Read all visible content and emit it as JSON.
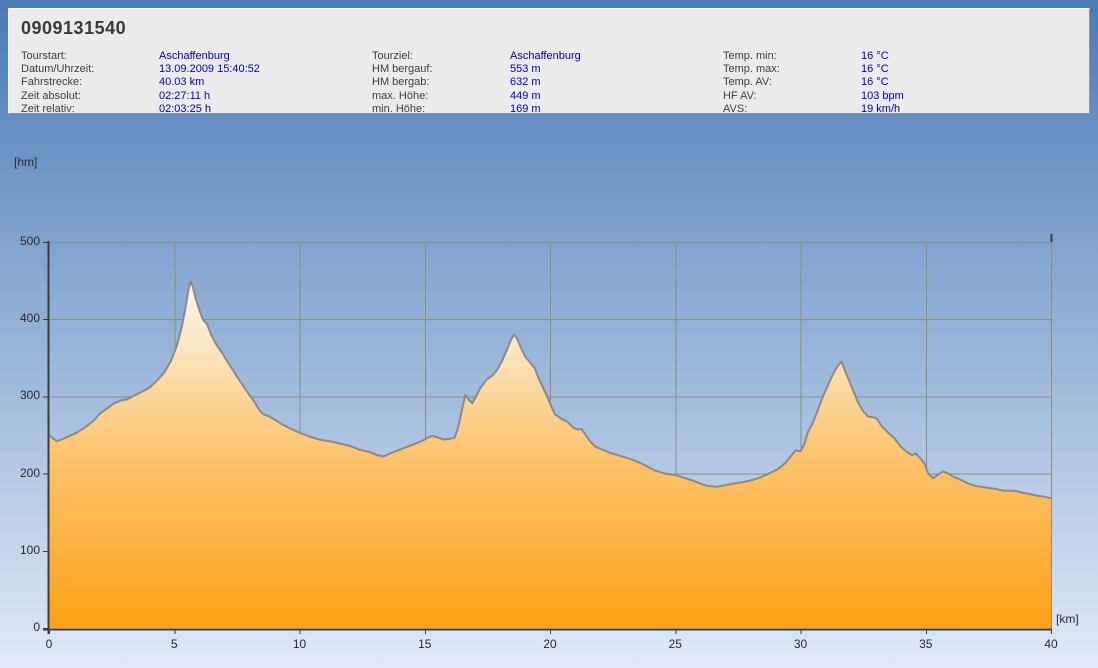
{
  "header": {
    "title": "0909131540",
    "columns": [
      {
        "rows": [
          {
            "label": "Tourstart:",
            "value": "Aschaffenburg"
          },
          {
            "label": "Datum/Uhrzeit:",
            "value": "13.09.2009 15:40:52"
          },
          {
            "label": "Fahrstrecke:",
            "value": "40.03 km"
          },
          {
            "label": "Zeit absolut:",
            "value": "02:27:11 h"
          },
          {
            "label": "Zeit relativ:",
            "value": "02:03:25 h"
          }
        ]
      },
      {
        "rows": [
          {
            "label": "Tourziel:",
            "value": "Aschaffenburg"
          },
          {
            "label": "HM bergauf:",
            "value": "553 m"
          },
          {
            "label": "HM bergab:",
            "value": "632 m"
          },
          {
            "label": "max. Höhe:",
            "value": "449 m"
          },
          {
            "label": "min. Höhe:",
            "value": "169 m"
          }
        ]
      },
      {
        "rows": [
          {
            "label": "Temp. min:",
            "value": "16 °C"
          },
          {
            "label": "Temp. max:",
            "value": "16 °C"
          },
          {
            "label": "Temp. AV:",
            "value": "16 °C"
          },
          {
            "label": "HF AV:",
            "value": "103 bpm"
          },
          {
            "label": "AVS:",
            "value": "19 km/h"
          }
        ]
      }
    ]
  },
  "chart_data": {
    "type": "area",
    "title": "",
    "xlabel": "[km]",
    "ylabel": "[hm]",
    "xlim": [
      0,
      40
    ],
    "ylim": [
      0,
      500
    ],
    "x_ticks": [
      0,
      5,
      10,
      15,
      20,
      25,
      30,
      35,
      40
    ],
    "y_ticks": [
      0,
      100,
      200,
      300,
      400,
      500
    ],
    "grid": true,
    "legend": "none",
    "series": [
      {
        "name": "elevation_profile_hm",
        "points": [
          [
            0,
            250
          ],
          [
            0.15,
            246
          ],
          [
            0.3,
            242
          ],
          [
            0.5,
            244
          ],
          [
            0.7,
            247
          ],
          [
            1,
            251
          ],
          [
            1.4,
            259
          ],
          [
            1.8,
            269
          ],
          [
            2,
            277
          ],
          [
            2.3,
            284
          ],
          [
            2.6,
            291
          ],
          [
            2.9,
            295
          ],
          [
            3.1,
            296
          ],
          [
            3.4,
            301
          ],
          [
            3.7,
            306
          ],
          [
            4,
            311
          ],
          [
            4.3,
            320
          ],
          [
            4.6,
            331
          ],
          [
            4.85,
            345
          ],
          [
            5.1,
            365
          ],
          [
            5.3,
            390
          ],
          [
            5.45,
            415
          ],
          [
            5.55,
            435
          ],
          [
            5.65,
            449
          ],
          [
            5.75,
            441
          ],
          [
            5.85,
            428
          ],
          [
            6,
            412
          ],
          [
            6.15,
            399
          ],
          [
            6.3,
            394
          ],
          [
            6.5,
            378
          ],
          [
            6.7,
            366
          ],
          [
            6.9,
            357
          ],
          [
            7.1,
            346
          ],
          [
            7.4,
            331
          ],
          [
            7.7,
            316
          ],
          [
            8,
            302
          ],
          [
            8.2,
            293
          ],
          [
            8.4,
            282
          ],
          [
            8.55,
            277
          ],
          [
            8.8,
            274
          ],
          [
            9,
            270
          ],
          [
            9.3,
            264
          ],
          [
            9.6,
            259
          ],
          [
            10,
            253
          ],
          [
            10.4,
            248
          ],
          [
            10.8,
            244
          ],
          [
            11.2,
            242
          ],
          [
            11.6,
            239
          ],
          [
            12,
            236
          ],
          [
            12.4,
            231
          ],
          [
            12.8,
            228
          ],
          [
            13.1,
            224
          ],
          [
            13.35,
            222
          ],
          [
            13.6,
            226
          ],
          [
            14,
            231
          ],
          [
            14.4,
            236
          ],
          [
            14.8,
            241
          ],
          [
            15.1,
            246
          ],
          [
            15.3,
            249
          ],
          [
            15.5,
            247
          ],
          [
            15.75,
            244
          ],
          [
            16,
            245
          ],
          [
            16.2,
            247
          ],
          [
            16.35,
            262
          ],
          [
            16.5,
            285
          ],
          [
            16.62,
            302
          ],
          [
            16.75,
            296
          ],
          [
            16.9,
            291
          ],
          [
            17.05,
            300
          ],
          [
            17.2,
            310
          ],
          [
            17.45,
            321
          ],
          [
            17.7,
            327
          ],
          [
            17.9,
            335
          ],
          [
            18.1,
            347
          ],
          [
            18.3,
            362
          ],
          [
            18.45,
            374
          ],
          [
            18.57,
            380
          ],
          [
            18.7,
            374
          ],
          [
            18.85,
            362
          ],
          [
            19,
            352
          ],
          [
            19.2,
            344
          ],
          [
            19.4,
            336
          ],
          [
            19.55,
            323
          ],
          [
            19.7,
            313
          ],
          [
            19.9,
            299
          ],
          [
            20.05,
            287
          ],
          [
            20.2,
            277
          ],
          [
            20.45,
            271
          ],
          [
            20.7,
            267
          ],
          [
            20.95,
            259
          ],
          [
            21.1,
            257
          ],
          [
            21.25,
            258
          ],
          [
            21.4,
            251
          ],
          [
            21.6,
            242
          ],
          [
            21.8,
            235
          ],
          [
            22.1,
            231
          ],
          [
            22.4,
            227
          ],
          [
            22.8,
            223
          ],
          [
            23.2,
            219
          ],
          [
            23.6,
            214
          ],
          [
            23.9,
            209
          ],
          [
            24.2,
            204
          ],
          [
            24.6,
            200
          ],
          [
            25,
            198
          ],
          [
            25.4,
            194
          ],
          [
            25.7,
            191
          ],
          [
            26,
            187
          ],
          [
            26.3,
            184
          ],
          [
            26.7,
            183
          ],
          [
            27,
            185
          ],
          [
            27.3,
            187
          ],
          [
            27.7,
            189
          ],
          [
            28,
            191
          ],
          [
            28.4,
            195
          ],
          [
            28.8,
            201
          ],
          [
            29.1,
            206
          ],
          [
            29.4,
            214
          ],
          [
            29.6,
            222
          ],
          [
            29.8,
            230
          ],
          [
            30,
            229
          ],
          [
            30.15,
            238
          ],
          [
            30.3,
            254
          ],
          [
            30.5,
            266
          ],
          [
            30.7,
            283
          ],
          [
            30.9,
            300
          ],
          [
            31.1,
            315
          ],
          [
            31.3,
            329
          ],
          [
            31.5,
            340
          ],
          [
            31.65,
            345
          ],
          [
            31.8,
            331
          ],
          [
            31.95,
            320
          ],
          [
            32.1,
            308
          ],
          [
            32.3,
            292
          ],
          [
            32.5,
            281
          ],
          [
            32.7,
            274
          ],
          [
            32.9,
            273
          ],
          [
            33.05,
            271
          ],
          [
            33.25,
            261
          ],
          [
            33.5,
            253
          ],
          [
            33.75,
            246
          ],
          [
            34,
            235
          ],
          [
            34.25,
            228
          ],
          [
            34.45,
            224
          ],
          [
            34.6,
            226
          ],
          [
            34.75,
            221
          ],
          [
            34.95,
            213
          ],
          [
            35.1,
            200
          ],
          [
            35.3,
            194
          ],
          [
            35.5,
            199
          ],
          [
            35.7,
            203
          ],
          [
            35.9,
            200
          ],
          [
            36.1,
            196
          ],
          [
            36.4,
            192
          ],
          [
            36.7,
            187
          ],
          [
            37,
            184
          ],
          [
            37.4,
            182
          ],
          [
            37.8,
            180
          ],
          [
            38.1,
            178
          ],
          [
            38.5,
            178
          ],
          [
            38.9,
            175
          ],
          [
            39.2,
            173
          ],
          [
            39.5,
            171
          ],
          [
            39.75,
            170
          ],
          [
            40,
            168
          ]
        ]
      }
    ],
    "colors": {
      "background_top": "#4A7AB7",
      "background_bottom": "#E0EAF8",
      "panel_bg": "#EBEBEB",
      "value_text": "#0000CC",
      "label_text": "#3E3E3E",
      "tick_text": "#2A2A2A",
      "grid": "#8C8C84",
      "axis": "#3C3C3C",
      "outline": "#8A8A8A",
      "area_gradient_stops": [
        "#FEFAF0",
        "#FAEED6",
        "#FCC46F",
        "#FFA115"
      ],
      "area_gradient_offsets": [
        "0%",
        "20%",
        "55%",
        "100%"
      ]
    }
  }
}
